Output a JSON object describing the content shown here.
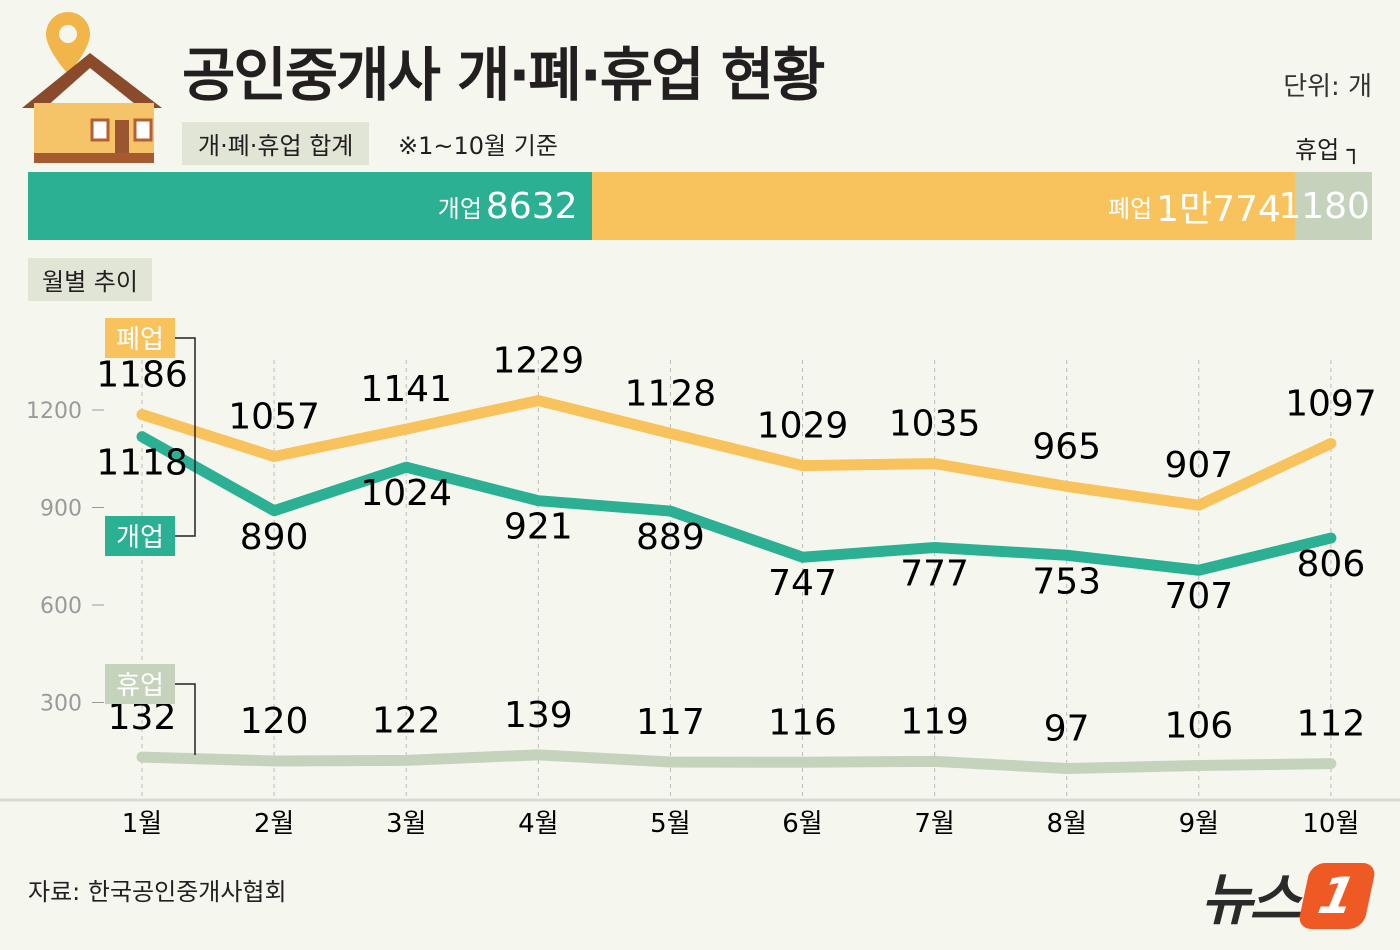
{
  "header": {
    "title": "공인중개사 개·폐·휴업 현황",
    "unit": "단위: 개",
    "total_tag": "개·폐·휴업 합계",
    "total_note": "※1~10월 기준",
    "monthly_tag": "월별 추이",
    "closed_total_label": "휴업"
  },
  "totals": [
    {
      "label": "개업",
      "value_text": "8632",
      "value": 8632,
      "color": "#2bb093"
    },
    {
      "label": "폐업",
      "value_text": "1만774",
      "value": 10774,
      "color": "#f8c25c"
    },
    {
      "label": "",
      "value_text": "1180",
      "value": 1180,
      "color": "#c5d3bd"
    }
  ],
  "source": "자료: 한국공인중개사협회",
  "logo": {
    "text": "뉴스",
    "mark": "1"
  },
  "chart_data": {
    "type": "line",
    "categories": [
      "1월",
      "2월",
      "3월",
      "4월",
      "5월",
      "6월",
      "7월",
      "8월",
      "9월",
      "10월"
    ],
    "yticks": [
      300,
      600,
      900,
      1200
    ],
    "ylim": [
      0,
      1300
    ],
    "grid": "vertical dashed",
    "series": [
      {
        "name": "폐업",
        "color": "#f8c25c",
        "values": [
          1186,
          1057,
          1141,
          1229,
          1128,
          1029,
          1035,
          965,
          907,
          1097
        ]
      },
      {
        "name": "개업",
        "color": "#2bb093",
        "values": [
          1118,
          890,
          1024,
          921,
          889,
          747,
          777,
          753,
          707,
          806
        ]
      },
      {
        "name": "휴업",
        "color": "#c5d3bd",
        "values": [
          132,
          120,
          122,
          139,
          117,
          116,
          119,
          97,
          106,
          112
        ]
      }
    ]
  }
}
